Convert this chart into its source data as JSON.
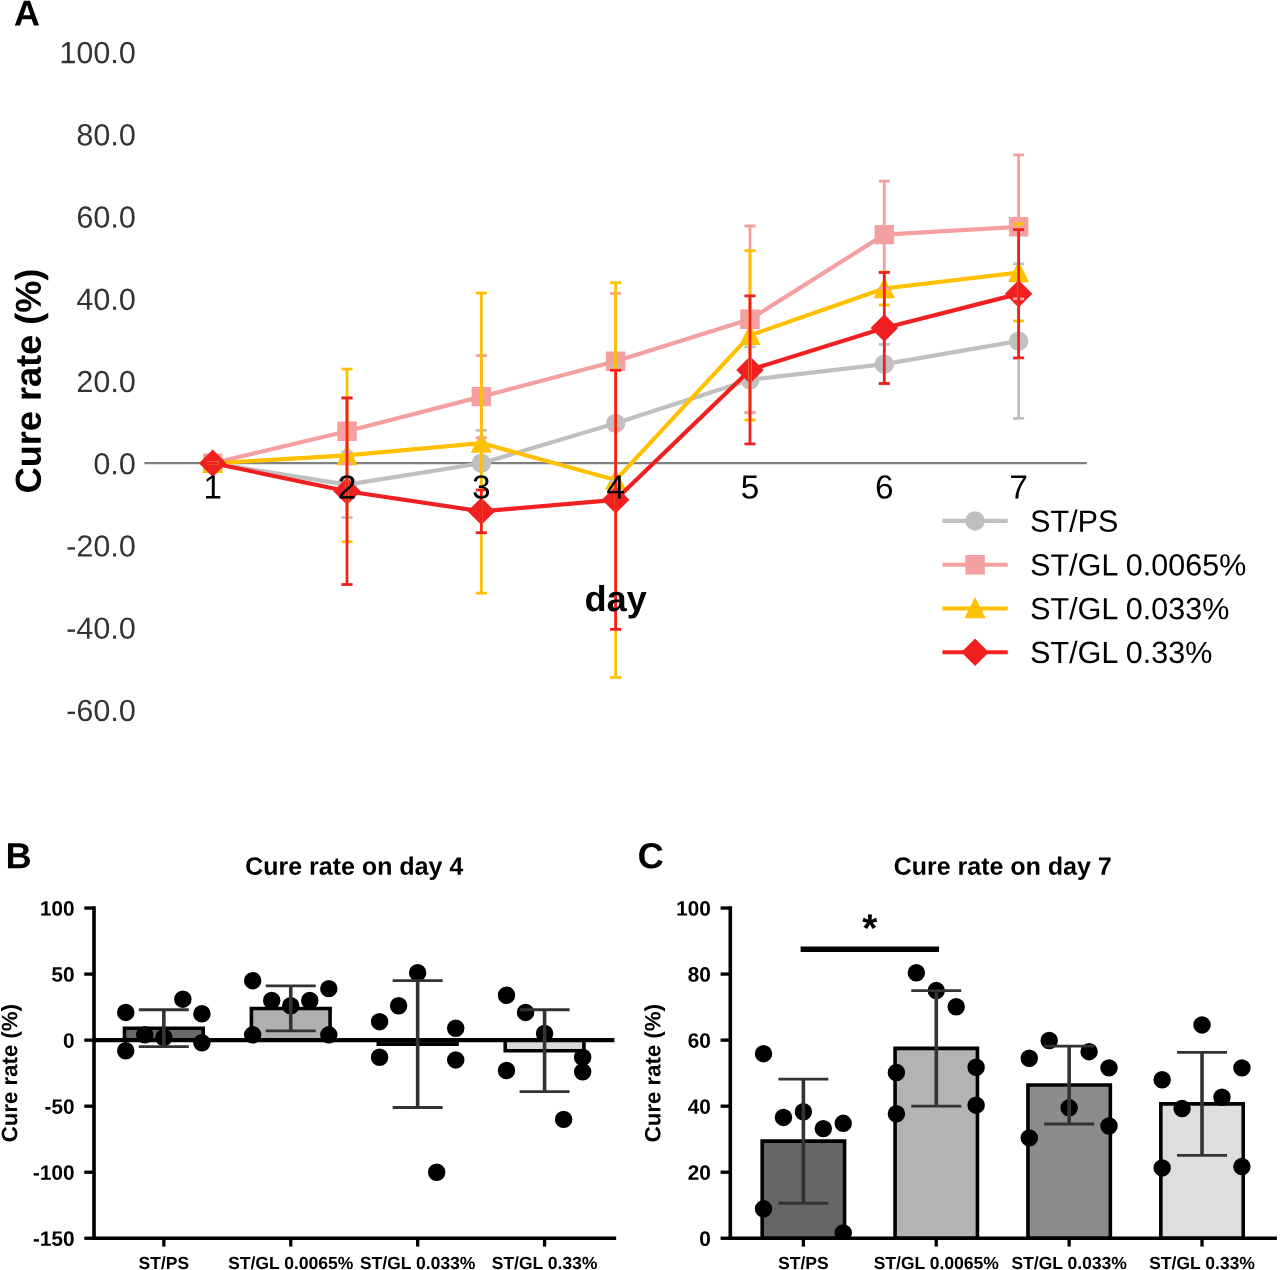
{
  "chart_data": [
    {
      "type": "line",
      "xlabel": "day",
      "ylabel": "Cure rate (%)",
      "annotations": [
        "A"
      ],
      "x": [
        1,
        2,
        3,
        4,
        5,
        6,
        7
      ],
      "xlim": [
        0.5,
        7.5
      ],
      "xticks": [
        1,
        2,
        3,
        4,
        5,
        6,
        7
      ],
      "ylim": [
        -60,
        100
      ],
      "yticks": [
        {
          "value": -60,
          "label": "-60.0"
        },
        {
          "value": -40,
          "label": "-40.0"
        },
        {
          "value": -20,
          "label": "-20.0"
        },
        {
          "value": 0,
          "label": "0.0"
        },
        {
          "value": 20,
          "label": "20.0"
        },
        {
          "value": 40,
          "label": "40.0"
        },
        {
          "value": 60,
          "label": "60.0"
        },
        {
          "value": 80,
          "label": "80.0"
        },
        {
          "value": 100,
          "label": "100.0"
        }
      ],
      "grid": false,
      "legend": "bottom right",
      "series": [
        {
          "name": "ST/PS",
          "color": "#c0c0c0",
          "marker": "circle",
          "values": [
            0,
            -5.2,
            0,
            9.7,
            20.3,
            24.1,
            29.7
          ],
          "errors": [
            null,
            8,
            8,
            14,
            8,
            4.8,
            18.8
          ]
        },
        {
          "name": "ST/GL 0.0065%",
          "color": "#f4a0a0",
          "marker": "square",
          "values": [
            0,
            7.8,
            16.2,
            24.8,
            35.0,
            55.6,
            57.5
          ],
          "errors": [
            null,
            8,
            10,
            16.5,
            22.7,
            13,
            17.5
          ]
        },
        {
          "name": "ST/GL 0.033%",
          "color": "#ffc000",
          "marker": "triangle",
          "values": [
            0,
            1.9,
            4.9,
            -4.1,
            31.1,
            42.5,
            46.4
          ],
          "errors": [
            null,
            21,
            36.5,
            48,
            20.6,
            4,
            11.8
          ]
        },
        {
          "name": "ST/GL 0.33%",
          "color": "#f02020",
          "marker": "diamond",
          "values": [
            0,
            -6.8,
            -11.7,
            -8.9,
            22.7,
            32.9,
            41.2
          ],
          "errors": [
            null,
            22.7,
            5.2,
            31.5,
            18,
            13.5,
            15.6
          ]
        }
      ]
    },
    {
      "type": "bar",
      "title": "Cure rate on day 4",
      "ylabel": "Cure rate (%)",
      "annotations": [
        "B"
      ],
      "categories": [
        "ST/PS",
        "ST/GL 0.0065%",
        "ST/GL 0.033%",
        "ST/GL 0.33%"
      ],
      "ylim": [
        -150,
        100
      ],
      "yticks": [
        -150,
        -100,
        -50,
        0,
        50,
        100
      ],
      "grid": false,
      "legend": false,
      "ref_lines": [
        {
          "axis": "y",
          "value": 0,
          "color": "#000000"
        }
      ],
      "series": [
        {
          "type": "bar",
          "colors": [
            "#696969",
            "#b0b0b0",
            "#8f8f8f",
            "#d9d9d9"
          ],
          "values": [
            9,
            24,
            -3,
            -8
          ],
          "errors": [
            14,
            17,
            48,
            31
          ]
        },
        {
          "type": "scatter",
          "color": "#000000",
          "marker": "circle",
          "x": [
            "ST/PS",
            "ST/PS",
            "ST/PS",
            "ST/PS",
            "ST/PS",
            "ST/PS",
            "ST/PS",
            "ST/GL 0.0065%",
            "ST/GL 0.0065%",
            "ST/GL 0.0065%",
            "ST/GL 0.0065%",
            "ST/GL 0.0065%",
            "ST/GL 0.0065%",
            "ST/GL 0.0065%",
            "ST/GL 0.033%",
            "ST/GL 0.033%",
            "ST/GL 0.033%",
            "ST/GL 0.033%",
            "ST/GL 0.033%",
            "ST/GL 0.033%",
            "ST/GL 0.033%",
            "ST/GL 0.33%",
            "ST/GL 0.33%",
            "ST/GL 0.33%",
            "ST/GL 0.33%",
            "ST/GL 0.33%",
            "ST/GL 0.33%",
            "ST/GL 0.33%"
          ],
          "values": [
            21,
            -8,
            4,
            2,
            31,
            20,
            -2,
            45,
            4,
            30,
            26,
            30,
            39,
            4,
            14,
            -13,
            26,
            51,
            -100,
            9,
            -15,
            -23,
            34,
            21,
            5,
            -60,
            -13,
            -24
          ]
        }
      ]
    },
    {
      "type": "bar",
      "title": "Cure rate on day 7",
      "ylabel": "Cure rate (%)",
      "annotations": [
        "C",
        "*"
      ],
      "categories": [
        "ST/PS",
        "ST/GL 0.0065%",
        "ST/GL 0.033%",
        "ST/GL 0.33%"
      ],
      "ylim": [
        0,
        100
      ],
      "yticks": [
        0,
        20,
        40,
        60,
        80,
        100
      ],
      "grid": false,
      "legend": false,
      "series": [
        {
          "type": "bar",
          "colors": [
            "#666666",
            "#b3b3b3",
            "#8c8c8c",
            "#dedede"
          ],
          "values": [
            29.4,
            57.5,
            46.4,
            40.7
          ],
          "errors": [
            18.8,
            17.5,
            11.8,
            15.6
          ]
        },
        {
          "type": "scatter",
          "color": "#000000",
          "marker": "circle",
          "x": [
            "ST/PS",
            "ST/PS",
            "ST/PS",
            "ST/PS",
            "ST/PS",
            "ST/PS",
            "ST/PS",
            "ST/GL 0.0065%",
            "ST/GL 0.0065%",
            "ST/GL 0.0065%",
            "ST/GL 0.0065%",
            "ST/GL 0.0065%",
            "ST/GL 0.0065%",
            "ST/GL 0.0065%",
            "ST/GL 0.033%",
            "ST/GL 0.033%",
            "ST/GL 0.033%",
            "ST/GL 0.033%",
            "ST/GL 0.033%",
            "ST/GL 0.033%",
            "ST/GL 0.033%",
            "ST/GL 0.33%",
            "ST/GL 0.33%",
            "ST/GL 0.33%",
            "ST/GL 0.33%",
            "ST/GL 0.33%",
            "ST/GL 0.33%",
            "ST/GL 0.33%"
          ],
          "values": [
            55.9,
            8.9,
            36.6,
            38.3,
            33.2,
            34.8,
            1.6,
            50.2,
            37.7,
            80.4,
            75,
            70.1,
            51.8,
            40.3,
            54.5,
            30.4,
            59.9,
            39.5,
            56.5,
            51.6,
            34,
            48,
            21.3,
            39.3,
            64.6,
            42.7,
            51.6,
            21.7
          ]
        }
      ]
    }
  ]
}
